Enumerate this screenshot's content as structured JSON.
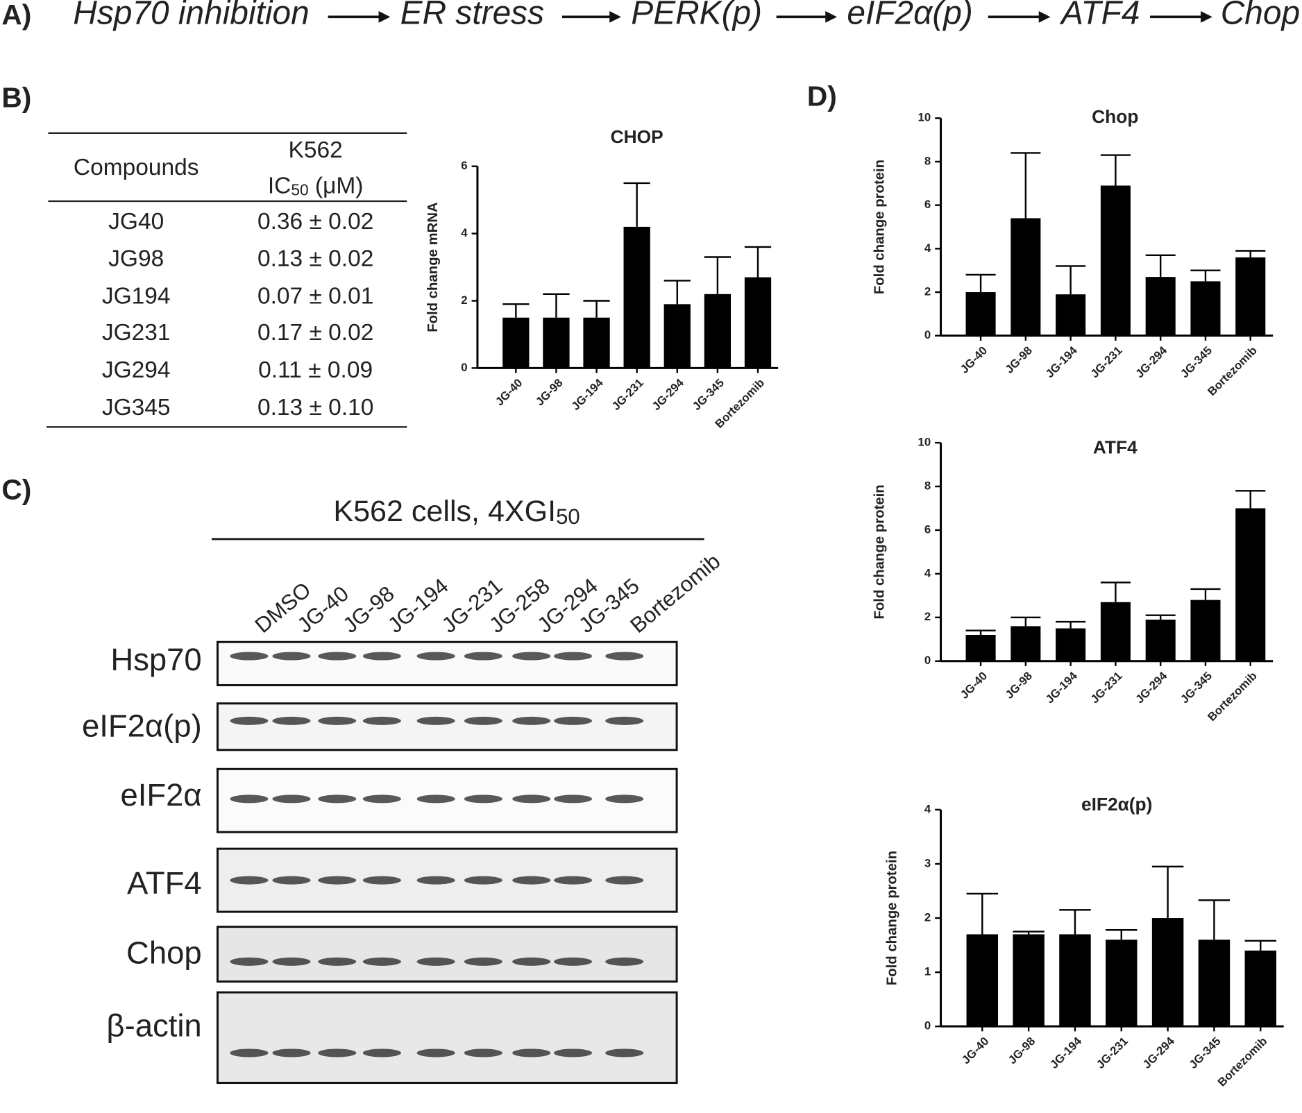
{
  "panel_a": {
    "label": "A)",
    "steps": [
      "Hsp70 inhibition",
      "ER stress",
      "PERK(p)",
      "eIF2α(p)",
      "ATF4",
      "Chop"
    ]
  },
  "panel_b": {
    "label": "B)",
    "table": {
      "header": {
        "compounds": "Compounds",
        "cell_line": "K562",
        "ic": "IC",
        "ic_sub": "50",
        "ic_unit": " (μM)"
      },
      "rows": [
        [
          "JG40",
          "0.36 ± 0.02"
        ],
        [
          "JG98",
          "0.13 ± 0.02"
        ],
        [
          "JG194",
          "0.07 ± 0.01"
        ],
        [
          "JG231",
          "0.17 ± 0.02"
        ],
        [
          "JG294",
          "0.11 ± 0.09"
        ],
        [
          "JG345",
          "0.13 ± 0.10"
        ]
      ]
    }
  },
  "panel_c": {
    "label": "C)",
    "title": "K562 cells, 4XGI",
    "title_sub": "50",
    "lanes": [
      "DMSO",
      "JG-40",
      "JG-98",
      "JG-194",
      "JG-231",
      "JG-258",
      "JG-294",
      "JG-345",
      "Bortezomib"
    ],
    "blots": [
      "Hsp70",
      "eIF2α(p)",
      "eIF2α",
      "ATF4",
      "Chop",
      "β-actin"
    ]
  },
  "panel_d": {
    "label": "D)"
  },
  "chart_data": [
    {
      "type": "bar",
      "title": "CHOP",
      "y_label": "Fold change mRNA",
      "categories": [
        "JG-40",
        "JG-98",
        "JG-194",
        "JG-231",
        "JG-294",
        "JG-345",
        "Bortezomib"
      ],
      "values": [
        1.5,
        1.5,
        1.5,
        4.2,
        1.9,
        2.2,
        2.7
      ],
      "errors": [
        0.4,
        0.7,
        0.5,
        1.3,
        0.7,
        1.1,
        0.9
      ],
      "color": "#000000",
      "ylim": [
        0,
        6
      ],
      "yticks": [
        0,
        2,
        4,
        6
      ]
    },
    {
      "type": "bar",
      "title": "Chop",
      "y_label": "Fold change protein",
      "categories": [
        "JG-40",
        "JG-98",
        "JG-194",
        "JG-231",
        "JG-294",
        "JG-345",
        "Bortezomib"
      ],
      "values": [
        2.0,
        5.4,
        1.9,
        6.9,
        2.7,
        2.5,
        3.6
      ],
      "errors": [
        0.8,
        3.0,
        1.3,
        1.4,
        1.0,
        0.5,
        0.3
      ],
      "color": "#000000",
      "ylim": [
        0,
        10
      ],
      "yticks": [
        0,
        2,
        4,
        6,
        8,
        10
      ]
    },
    {
      "type": "bar",
      "title": "ATF4",
      "y_label": "Fold change protein",
      "categories": [
        "JG-40",
        "JG-98",
        "JG-194",
        "JG-231",
        "JG-294",
        "JG-345",
        "Bortezomib"
      ],
      "values": [
        1.2,
        1.6,
        1.5,
        2.7,
        1.9,
        2.8,
        7.0
      ],
      "errors": [
        0.2,
        0.4,
        0.3,
        0.9,
        0.2,
        0.5,
        0.8
      ],
      "color": "#000000",
      "ylim": [
        0,
        10
      ],
      "yticks": [
        0,
        2,
        4,
        6,
        8,
        10
      ]
    },
    {
      "type": "bar",
      "title": "eIF2α(p)",
      "y_label": "Fold change protein",
      "categories": [
        "JG-40",
        "JG-98",
        "JG-194",
        "JG-231",
        "JG-294",
        "JG-345",
        "Bortezomib"
      ],
      "values": [
        1.7,
        1.7,
        1.7,
        1.6,
        2.0,
        1.6,
        1.4
      ],
      "errors": [
        0.75,
        0.05,
        0.45,
        0.18,
        0.95,
        0.73,
        0.18
      ],
      "color": "#000000",
      "ylim": [
        0,
        4
      ],
      "yticks": [
        0,
        1,
        2,
        3,
        4
      ]
    }
  ]
}
